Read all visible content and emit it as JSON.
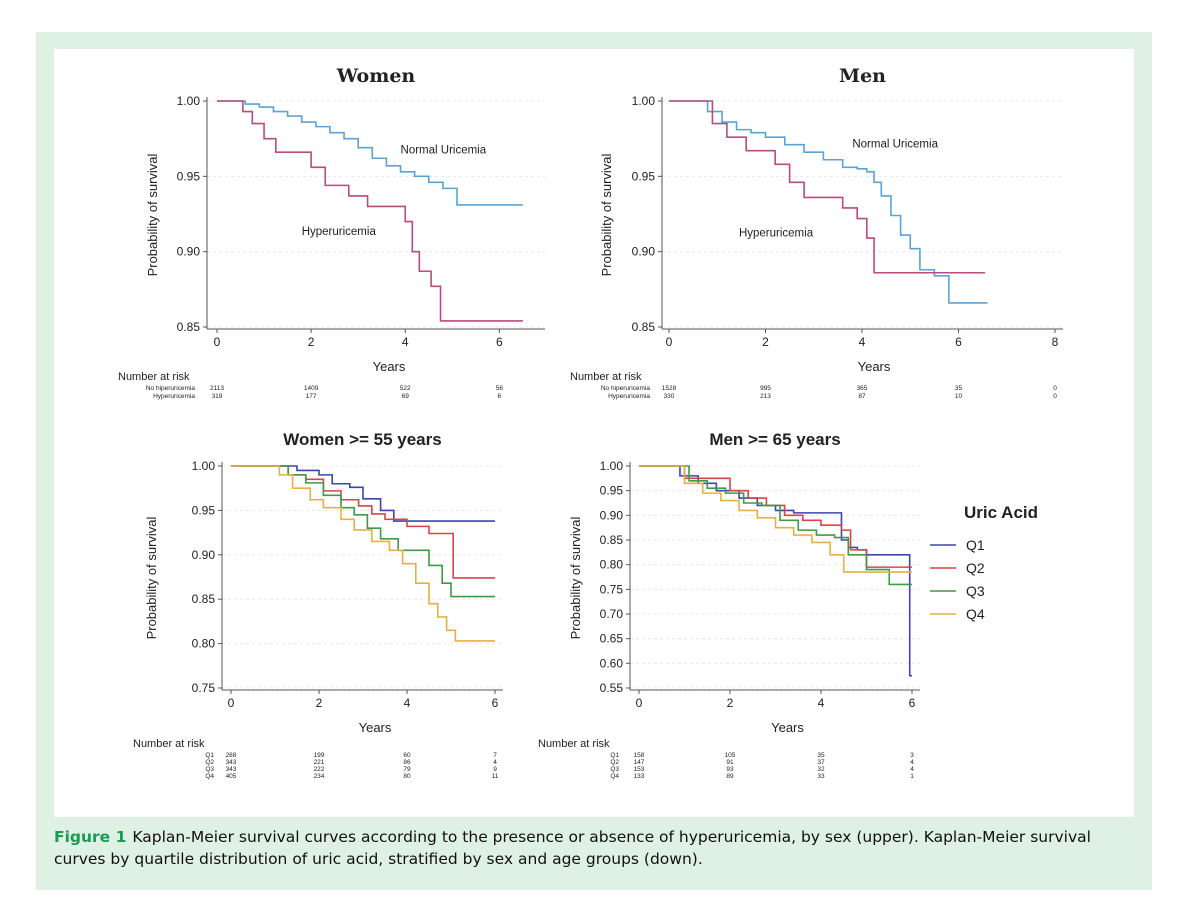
{
  "caption": {
    "label": "Figure 1",
    "text": "Kaplan-Meier survival curves according to the presence or absence of hyperuricemia, by sex (upper). Kaplan-Meier survival curves by quartile distribution of uric acid, stratified by sex and age groups (down)."
  },
  "colors": {
    "frame": "#dff0e4",
    "caption_label": "#1a9a55",
    "normal": "#5aa3d6",
    "hyper": "#b84c7e",
    "Q1": "#3f44b0",
    "Q2": "#d9434a",
    "Q3": "#3f9a47",
    "Q4": "#e8b042"
  },
  "chart_data": [
    {
      "id": "women",
      "type": "line",
      "title": "Women",
      "title_font": "serif",
      "xlabel": "Years",
      "ylabel": "Probability of survival",
      "xlim": [
        0,
        6.8
      ],
      "ylim": [
        0.85,
        1.0
      ],
      "xticks": [
        0,
        2,
        4,
        6
      ],
      "yticks": [
        "0.85",
        "0.90",
        "0.95",
        "1.00"
      ],
      "grid": true,
      "series": [
        {
          "name": "Normal Uricemia",
          "color_key": "normal",
          "x": [
            0,
            0.3,
            0.6,
            0.9,
            1.2,
            1.5,
            1.8,
            2.1,
            2.4,
            2.7,
            3.0,
            3.3,
            3.6,
            3.9,
            4.2,
            4.5,
            4.8,
            5.1,
            5.4,
            5.7,
            6.0,
            6.5
          ],
          "y": [
            1.0,
            1.0,
            0.998,
            0.996,
            0.993,
            0.99,
            0.986,
            0.983,
            0.979,
            0.975,
            0.969,
            0.962,
            0.957,
            0.953,
            0.95,
            0.946,
            0.942,
            0.931,
            0.931,
            0.931,
            0.931,
            0.931
          ]
        },
        {
          "name": "Hyperuricemia",
          "color_key": "hyper",
          "x": [
            0,
            0.35,
            0.55,
            0.75,
            1.0,
            1.25,
            1.5,
            2.0,
            2.3,
            2.8,
            3.2,
            3.6,
            4.0,
            4.15,
            4.3,
            4.55,
            4.75,
            5.0,
            5.6,
            6.5
          ],
          "y": [
            1.0,
            1.0,
            0.993,
            0.985,
            0.975,
            0.966,
            0.966,
            0.956,
            0.944,
            0.937,
            0.93,
            0.93,
            0.92,
            0.9,
            0.887,
            0.877,
            0.854,
            0.854,
            0.854,
            0.854
          ]
        }
      ],
      "annotations": [
        {
          "text": "Normal Uricemia",
          "x": 3.9,
          "y": 0.965
        },
        {
          "text": "Hyperuricemia",
          "x": 1.8,
          "y": 0.911
        }
      ],
      "risk_table": {
        "header": "Number at risk",
        "times": [
          0,
          2,
          4,
          6
        ],
        "rows": [
          {
            "label": "No hiperuricemia",
            "values": [
              "2113",
              "1409",
              "522",
              "56"
            ]
          },
          {
            "label": "Hyperuricemia",
            "values": [
              "319",
              "177",
              "69",
              "6"
            ]
          }
        ]
      }
    },
    {
      "id": "men",
      "type": "line",
      "title": "Men",
      "title_font": "serif",
      "xlabel": "Years",
      "ylabel": "Probability of survival",
      "xlim": [
        0,
        8
      ],
      "ylim": [
        0.85,
        1.0
      ],
      "xticks": [
        0,
        2,
        4,
        6,
        8
      ],
      "yticks": [
        "0.85",
        "0.90",
        "0.95",
        "1.00"
      ],
      "grid": true,
      "series": [
        {
          "name": "Normal Uricemia",
          "color_key": "normal",
          "x": [
            0,
            0.5,
            0.8,
            1.1,
            1.4,
            1.7,
            2.0,
            2.4,
            2.8,
            3.2,
            3.6,
            3.9,
            4.1,
            4.25,
            4.4,
            4.6,
            4.8,
            5.0,
            5.2,
            5.5,
            5.8,
            6.2,
            6.6
          ],
          "y": [
            1.0,
            1.0,
            0.993,
            0.986,
            0.981,
            0.979,
            0.976,
            0.971,
            0.966,
            0.961,
            0.956,
            0.955,
            0.953,
            0.946,
            0.937,
            0.924,
            0.911,
            0.902,
            0.888,
            0.884,
            0.866,
            0.866,
            0.866
          ]
        },
        {
          "name": "Hyperuricemia",
          "color_key": "hyper",
          "x": [
            0,
            0.6,
            0.9,
            1.2,
            1.6,
            1.9,
            2.2,
            2.5,
            2.8,
            3.2,
            3.6,
            3.9,
            4.1,
            4.25,
            4.5,
            5.0,
            5.8,
            6.55
          ],
          "y": [
            1.0,
            1.0,
            0.985,
            0.976,
            0.967,
            0.967,
            0.958,
            0.946,
            0.936,
            0.936,
            0.929,
            0.922,
            0.909,
            0.886,
            0.886,
            0.886,
            0.886,
            0.886
          ]
        }
      ],
      "annotations": [
        {
          "text": "Normal Uricemia",
          "x": 3.8,
          "y": 0.969
        },
        {
          "text": "Hyperuricemia",
          "x": 1.45,
          "y": 0.91
        }
      ],
      "risk_table": {
        "header": "Number at risk",
        "times": [
          0,
          2,
          4,
          6,
          8
        ],
        "rows": [
          {
            "label": "No hiperuricemia",
            "values": [
              "1528",
              "995",
              "365",
              "35",
              "0"
            ]
          },
          {
            "label": "Hyperuricemia",
            "values": [
              "330",
              "213",
              "87",
              "10",
              "0"
            ]
          }
        ]
      }
    },
    {
      "id": "women55",
      "type": "line",
      "title": "Women >= 55 years",
      "title_font": "sans",
      "xlabel": "Years",
      "ylabel": "Probability of survival",
      "xlim": [
        0,
        6
      ],
      "ylim": [
        0.75,
        1.0
      ],
      "xticks": [
        0,
        2,
        4,
        6
      ],
      "yticks": [
        "0.75",
        "0.80",
        "0.85",
        "0.90",
        "0.95",
        "1.00"
      ],
      "grid": true,
      "series": [
        {
          "name": "Q1",
          "color_key": "Q1",
          "x": [
            0,
            1.2,
            1.5,
            2.0,
            2.3,
            2.7,
            3.0,
            3.4,
            3.7,
            4.0,
            5.0,
            6.0
          ],
          "y": [
            1.0,
            1.0,
            0.995,
            0.99,
            0.98,
            0.976,
            0.963,
            0.95,
            0.938,
            0.938,
            0.938,
            0.938
          ]
        },
        {
          "name": "Q2",
          "color_key": "Q2",
          "x": [
            0,
            0.9,
            1.3,
            1.7,
            2.1,
            2.5,
            2.9,
            3.2,
            3.5,
            4.0,
            4.5,
            5.05,
            5.5,
            6.0
          ],
          "y": [
            1.0,
            1.0,
            0.99,
            0.985,
            0.972,
            0.962,
            0.955,
            0.946,
            0.94,
            0.932,
            0.924,
            0.874,
            0.874,
            0.874
          ]
        },
        {
          "name": "Q3",
          "color_key": "Q3",
          "x": [
            0,
            0.9,
            1.3,
            1.7,
            2.1,
            2.5,
            2.8,
            3.1,
            3.4,
            3.8,
            4.1,
            4.5,
            4.8,
            5.0,
            6.0
          ],
          "y": [
            1.0,
            1.0,
            0.99,
            0.981,
            0.967,
            0.953,
            0.945,
            0.93,
            0.918,
            0.905,
            0.905,
            0.888,
            0.868,
            0.853,
            0.853
          ]
        },
        {
          "name": "Q4",
          "color_key": "Q4",
          "x": [
            0,
            0.7,
            1.1,
            1.4,
            1.8,
            2.1,
            2.5,
            2.8,
            3.2,
            3.6,
            3.9,
            4.2,
            4.5,
            4.7,
            4.9,
            5.1,
            6.0
          ],
          "y": [
            1.0,
            1.0,
            0.99,
            0.975,
            0.962,
            0.953,
            0.94,
            0.928,
            0.915,
            0.905,
            0.89,
            0.868,
            0.845,
            0.83,
            0.815,
            0.803,
            0.803
          ]
        }
      ],
      "risk_table": {
        "header": "Number at risk",
        "times": [
          0,
          2,
          4,
          6
        ],
        "rows": [
          {
            "label": "Q1",
            "values": [
              "288",
              "199",
              "60",
              "7"
            ]
          },
          {
            "label": "Q2",
            "values": [
              "343",
              "221",
              "86",
              "4"
            ]
          },
          {
            "label": "Q3",
            "values": [
              "343",
              "222",
              "79",
              "9"
            ]
          },
          {
            "label": "Q4",
            "values": [
              "405",
              "234",
              "80",
              "11"
            ]
          }
        ]
      }
    },
    {
      "id": "men65",
      "type": "line",
      "title": "Men >= 65 years",
      "title_font": "sans",
      "xlabel": "Years",
      "ylabel": "Probability of survival",
      "xlim": [
        0,
        6
      ],
      "ylim": [
        0.55,
        1.0
      ],
      "xticks": [
        0,
        2,
        4,
        6
      ],
      "yticks": [
        "0.55",
        "0.60",
        "0.65",
        "0.70",
        "0.75",
        "0.80",
        "0.85",
        "0.90",
        "0.95",
        "1.00"
      ],
      "grid": true,
      "legend": {
        "title": "Uric Acid",
        "position": "right",
        "items": [
          "Q1",
          "Q2",
          "Q3",
          "Q4"
        ]
      },
      "series": [
        {
          "name": "Q1",
          "color_key": "Q1",
          "x": [
            0,
            0.5,
            0.9,
            1.3,
            1.7,
            2.2,
            2.6,
            3.0,
            3.4,
            3.8,
            4.2,
            4.45,
            4.6,
            4.8,
            5.0,
            5.5,
            5.85,
            5.95,
            6.0
          ],
          "y": [
            1.0,
            1.0,
            0.98,
            0.965,
            0.95,
            0.935,
            0.92,
            0.91,
            0.905,
            0.905,
            0.905,
            0.85,
            0.835,
            0.83,
            0.82,
            0.82,
            0.82,
            0.575,
            0.575
          ]
        },
        {
          "name": "Q2",
          "color_key": "Q2",
          "x": [
            0,
            0.6,
            1.0,
            1.6,
            2.0,
            2.4,
            2.8,
            3.2,
            3.6,
            4.0,
            4.45,
            4.65,
            5.0,
            6.0
          ],
          "y": [
            1.0,
            1.0,
            0.975,
            0.975,
            0.95,
            0.935,
            0.92,
            0.9,
            0.89,
            0.88,
            0.87,
            0.83,
            0.795,
            0.795
          ]
        },
        {
          "name": "Q3",
          "color_key": "Q3",
          "x": [
            0,
            0.7,
            1.1,
            1.5,
            1.9,
            2.3,
            2.7,
            3.1,
            3.5,
            3.9,
            4.3,
            4.6,
            5.0,
            5.5,
            6.0
          ],
          "y": [
            1.0,
            1.0,
            0.97,
            0.955,
            0.945,
            0.925,
            0.92,
            0.89,
            0.87,
            0.86,
            0.855,
            0.82,
            0.79,
            0.76,
            0.76
          ]
        },
        {
          "name": "Q4",
          "color_key": "Q4",
          "x": [
            0,
            0.6,
            1.0,
            1.4,
            1.8,
            2.2,
            2.6,
            3.0,
            3.4,
            3.8,
            4.2,
            4.5,
            4.9,
            6.0
          ],
          "y": [
            1.0,
            1.0,
            0.965,
            0.945,
            0.93,
            0.91,
            0.895,
            0.875,
            0.86,
            0.845,
            0.82,
            0.785,
            0.785,
            0.785
          ]
        }
      ],
      "risk_table": {
        "header": "Number at risk",
        "times": [
          0,
          2,
          4,
          6
        ],
        "rows": [
          {
            "label": "Q1",
            "values": [
              "158",
              "105",
              "35",
              "3"
            ]
          },
          {
            "label": "Q2",
            "values": [
              "147",
              "91",
              "37",
              "4"
            ]
          },
          {
            "label": "Q3",
            "values": [
              "153",
              "93",
              "32",
              "4"
            ]
          },
          {
            "label": "Q4",
            "values": [
              "133",
              "89",
              "33",
              "1"
            ]
          }
        ]
      }
    }
  ]
}
